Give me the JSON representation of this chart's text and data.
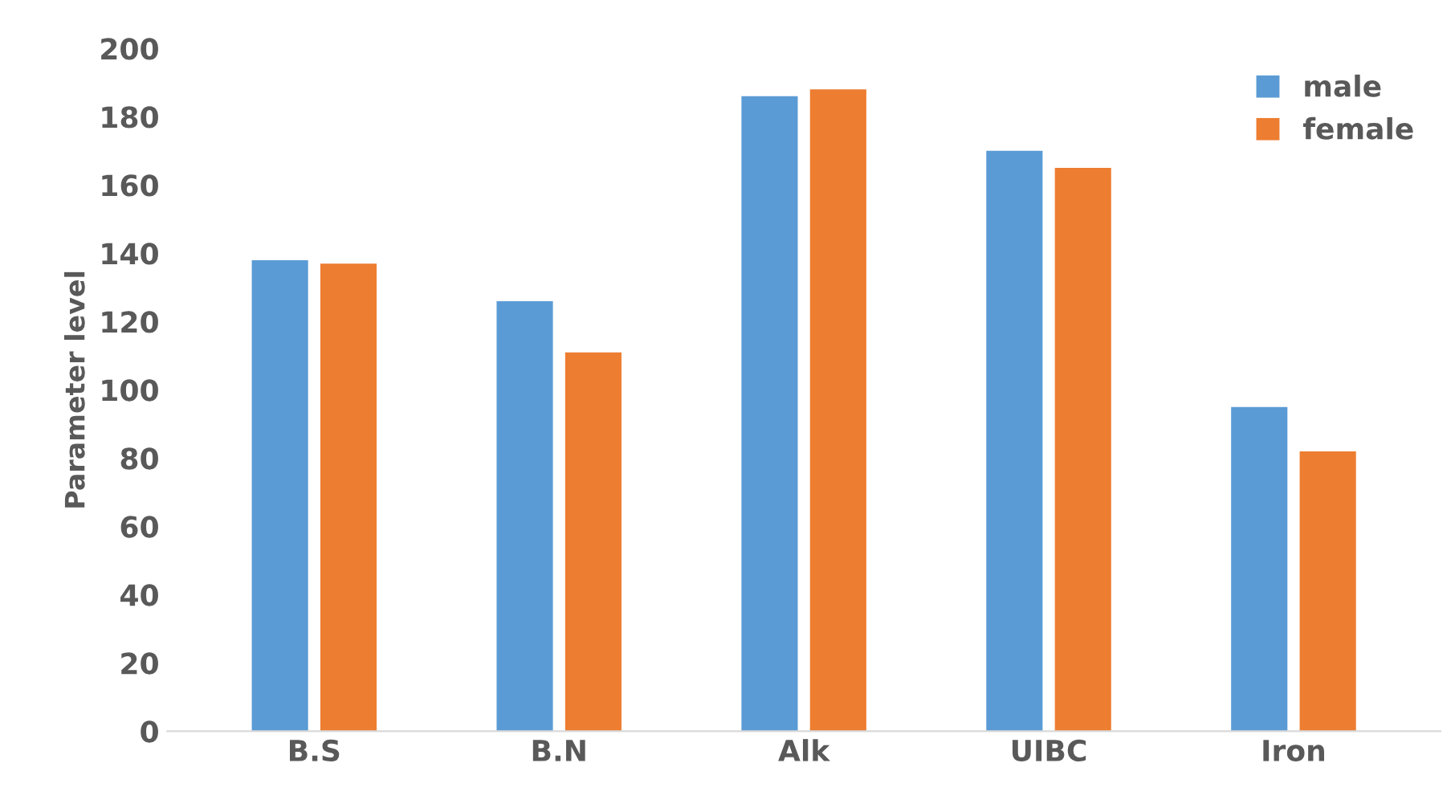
{
  "chart_data": {
    "type": "bar",
    "ylabel": "Parameter level",
    "categories": [
      "B.S",
      "B.N",
      "Alk",
      "UIBC",
      "Iron"
    ],
    "series": [
      {
        "name": "male",
        "color": "#5b9bd5",
        "values": [
          138,
          126,
          186,
          170,
          95
        ]
      },
      {
        "name": "female",
        "color": "#ed7d31",
        "values": [
          137,
          111,
          188,
          165,
          82
        ]
      }
    ],
    "ylim": [
      0,
      200
    ],
    "yticks": [
      0,
      20,
      40,
      60,
      80,
      100,
      120,
      140,
      160,
      180,
      200
    ],
    "grid": false,
    "legend": "top right"
  }
}
